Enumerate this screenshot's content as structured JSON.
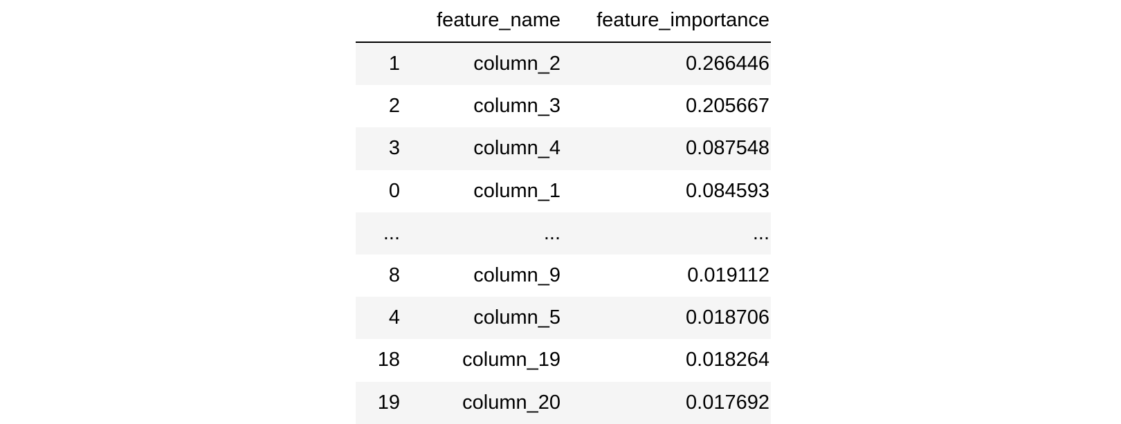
{
  "table": {
    "columns": [
      "",
      "feature_name",
      "feature_importance"
    ],
    "rows": [
      {
        "index": "1",
        "feature_name": "column_2",
        "feature_importance": "0.266446"
      },
      {
        "index": "2",
        "feature_name": "column_3",
        "feature_importance": "0.205667"
      },
      {
        "index": "3",
        "feature_name": "column_4",
        "feature_importance": "0.087548"
      },
      {
        "index": "0",
        "feature_name": "column_1",
        "feature_importance": "0.084593"
      },
      {
        "index": "...",
        "feature_name": "...",
        "feature_importance": "..."
      },
      {
        "index": "8",
        "feature_name": "column_9",
        "feature_importance": "0.019112"
      },
      {
        "index": "4",
        "feature_name": "column_5",
        "feature_importance": "0.018706"
      },
      {
        "index": "18",
        "feature_name": "column_19",
        "feature_importance": "0.018264"
      },
      {
        "index": "19",
        "feature_name": "column_20",
        "feature_importance": "0.017692"
      }
    ]
  },
  "colors": {
    "stripe": "#f5f5f5",
    "background": "#ffffff",
    "text": "#000000",
    "header_rule": "#000000"
  }
}
